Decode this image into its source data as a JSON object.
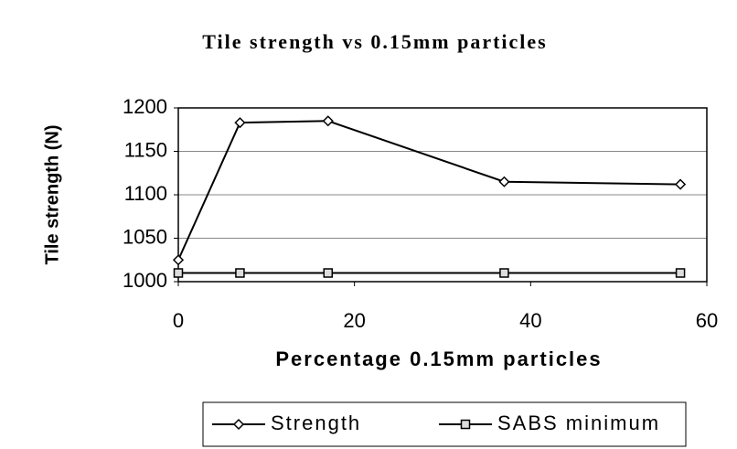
{
  "chart_data": {
    "type": "line",
    "title": "Tile strength vs 0.15mm particles",
    "x_label": "Percentage 0.15mm particles",
    "y_label": "Tile strength (N)",
    "x": [
      0,
      7,
      17,
      37,
      57
    ],
    "series": [
      {
        "name": "Strength",
        "color": "#000000",
        "marker": "diamond",
        "values": [
          1025,
          1183,
          1185,
          1115,
          1112
        ]
      },
      {
        "name": "SABS minimum",
        "color": "#000000",
        "marker": "square",
        "values": [
          1010,
          1010,
          1010,
          1010,
          1010
        ]
      }
    ],
    "xlim": [
      0,
      60
    ],
    "xticks": [
      0,
      20,
      40,
      60
    ],
    "ylim": [
      1000,
      1200
    ],
    "yticks": [
      1000,
      1050,
      1100,
      1150,
      1200
    ],
    "grid": true,
    "legend": "bottom"
  }
}
